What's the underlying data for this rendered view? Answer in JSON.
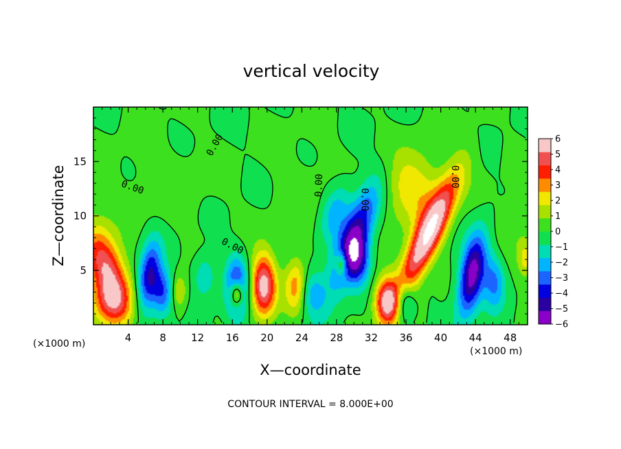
{
  "chart_data": {
    "type": "heatmap",
    "title": "vertical velocity",
    "xlabel": "X—coordinate",
    "ylabel": "Z—coordinate",
    "x_unit": "(×1000 m)",
    "x_unit_right": "(×1000 m)",
    "footer": "CONTOUR INTERVAL = 8.000E+00",
    "xlim": [
      0,
      50
    ],
    "ylim": [
      0,
      20
    ],
    "x_ticks": [
      4,
      8,
      12,
      16,
      20,
      24,
      28,
      32,
      36,
      40,
      44,
      48
    ],
    "y_ticks": [
      5,
      10,
      15
    ],
    "x_tick_labels": [
      "4",
      "8",
      "12",
      "16",
      "20",
      "24",
      "28",
      "32",
      "36",
      "40",
      "44",
      "48"
    ],
    "y_tick_labels": [
      "5",
      "10",
      "15"
    ],
    "colorbar": {
      "min": -6,
      "max": 6,
      "tick_labels": [
        "6",
        "5",
        "4",
        "3",
        "2",
        "1",
        "0",
        "−1",
        "−2",
        "−3",
        "−4",
        "−5",
        "−6"
      ],
      "colors": [
        "#8a00c8",
        "#2a00a0",
        "#0000e0",
        "#1c64ff",
        "#00b4ff",
        "#00dcb4",
        "#10e050",
        "#3ce01e",
        "#a8e000",
        "#f0e800",
        "#ff8c00",
        "#ff1e00",
        "#f05050",
        "#f8c8c8"
      ]
    },
    "contour_labels": [
      "0.00",
      "0.00",
      "0.00",
      "0.00",
      "0.00",
      "0.00"
    ],
    "features": [
      {
        "x": 1.6,
        "z": 5.0,
        "w": 1.6,
        "sx": 1.5,
        "sz": 2.8,
        "tilt": -0.35
      },
      {
        "x": 2.0,
        "z": 2.0,
        "w": 0.8,
        "sx": 1.6,
        "sz": 1.5,
        "tilt": 0
      },
      {
        "x": 6.4,
        "z": 4.5,
        "w": -1.3,
        "sx": 0.9,
        "sz": 2.2,
        "tilt": 0.15
      },
      {
        "x": 8.0,
        "z": 3.0,
        "w": -1.0,
        "sx": 0.9,
        "sz": 1.5,
        "tilt": 0
      },
      {
        "x": 9.8,
        "z": 3.0,
        "w": 0.6,
        "sx": 0.7,
        "sz": 1.2,
        "tilt": 0
      },
      {
        "x": 12.8,
        "z": 4.6,
        "w": -0.5,
        "sx": 0.9,
        "sz": 1.4,
        "tilt": 0
      },
      {
        "x": 16.5,
        "z": 3.2,
        "w": -1.3,
        "sx": 0.9,
        "sz": 2.0,
        "tilt": 0
      },
      {
        "x": 16.5,
        "z": 2.8,
        "w": 1.6,
        "sx": 0.55,
        "sz": 0.9,
        "tilt": 0
      },
      {
        "x": 19.6,
        "z": 3.6,
        "w": 1.7,
        "sx": 1.0,
        "sz": 2.0,
        "tilt": 0
      },
      {
        "x": 23.3,
        "z": 3.6,
        "w": 0.9,
        "sx": 0.9,
        "sz": 1.8,
        "tilt": 0
      },
      {
        "x": 25.2,
        "z": 3.0,
        "w": -0.6,
        "sx": 1.0,
        "sz": 1.5,
        "tilt": 0
      },
      {
        "x": 28.6,
        "z": 5.6,
        "w": 1.0,
        "sx": 0.5,
        "sz": 0.8,
        "tilt": 0
      },
      {
        "x": 30.0,
        "z": 8.0,
        "w": -1.4,
        "sx": 1.3,
        "sz": 3.5,
        "tilt": 0.45
      },
      {
        "x": 30.4,
        "z": 6.0,
        "w": -1.2,
        "sx": 1.0,
        "sz": 1.6,
        "tilt": 0
      },
      {
        "x": 27.8,
        "z": 10.5,
        "w": -0.6,
        "sx": 1.1,
        "sz": 2.0,
        "tilt": 0.3
      },
      {
        "x": 33.8,
        "z": 2.2,
        "w": 1.6,
        "sx": 1.0,
        "sz": 1.5,
        "tilt": 0
      },
      {
        "x": 35.8,
        "z": 2.2,
        "w": -0.9,
        "sx": 0.8,
        "sz": 1.3,
        "tilt": 0
      },
      {
        "x": 38.4,
        "z": 8.0,
        "w": 1.9,
        "sx": 1.2,
        "sz": 4.0,
        "tilt": 0.55
      },
      {
        "x": 36.8,
        "z": 12.5,
        "w": 0.7,
        "sx": 2.5,
        "sz": 2.5,
        "tilt": 0
      },
      {
        "x": 43.6,
        "z": 4.6,
        "w": -1.7,
        "sx": 1.0,
        "sz": 2.6,
        "tilt": 0.2
      },
      {
        "x": 46.2,
        "z": 4.0,
        "w": -0.8,
        "sx": 0.9,
        "sz": 1.8,
        "tilt": 0
      },
      {
        "x": 49.8,
        "z": 6.0,
        "w": 0.6,
        "sx": 0.6,
        "sz": 1.2,
        "tilt": 0
      },
      {
        "x": 48.3,
        "z": 9.0,
        "w": 0.25,
        "sx": 1.5,
        "sz": 2.0,
        "tilt": 0
      },
      {
        "x": 8.0,
        "z": 13.0,
        "w": 0.15,
        "sx": 4.0,
        "sz": 3.0,
        "tilt": 0
      },
      {
        "x": 24.5,
        "z": 12.0,
        "w": 0.12,
        "sx": 3.0,
        "sz": 4.0,
        "tilt": 0
      }
    ]
  }
}
